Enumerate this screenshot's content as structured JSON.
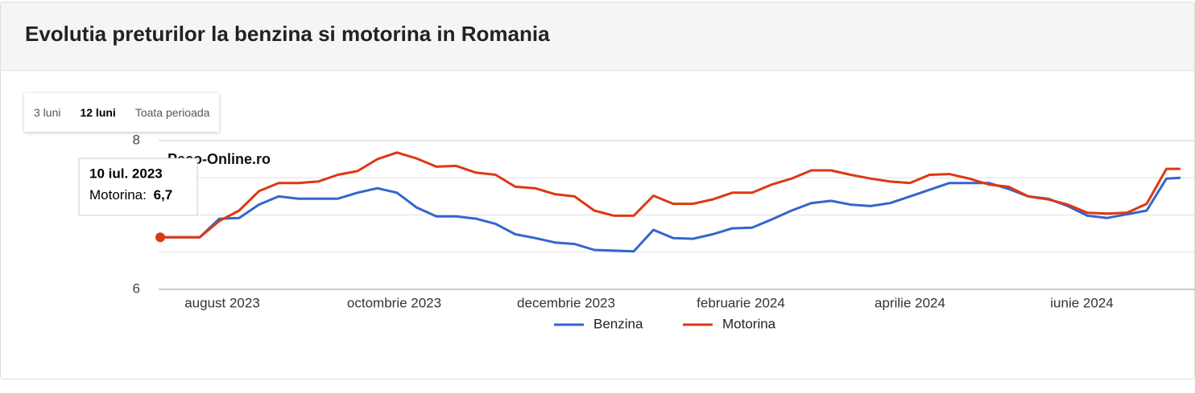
{
  "header": {
    "title": "Evolutia preturilor la benzina si motorina in Romania"
  },
  "range_buttons": [
    "3 luni",
    "12 luni",
    "Toata perioada"
  ],
  "active_range": 1,
  "chart_data": {
    "type": "line",
    "watermark": "Peco-Online.ro",
    "x": [
      "2023-07-10",
      "2023-07-17",
      "2023-07-24",
      "2023-07-31",
      "2023-08-07",
      "2023-08-14",
      "2023-08-21",
      "2023-08-28",
      "2023-09-04",
      "2023-09-11",
      "2023-09-18",
      "2023-09-25",
      "2023-10-02",
      "2023-10-09",
      "2023-10-16",
      "2023-10-23",
      "2023-10-30",
      "2023-11-06",
      "2023-11-13",
      "2023-11-20",
      "2023-11-27",
      "2023-12-04",
      "2023-12-11",
      "2023-12-18",
      "2023-12-25",
      "2024-01-01",
      "2024-01-08",
      "2024-01-15",
      "2024-01-22",
      "2024-01-29",
      "2024-02-05",
      "2024-02-12",
      "2024-02-19",
      "2024-02-26",
      "2024-03-04",
      "2024-03-11",
      "2024-03-18",
      "2024-03-25",
      "2024-04-01",
      "2024-04-08",
      "2024-04-15",
      "2024-04-22",
      "2024-04-29",
      "2024-05-06",
      "2024-05-13",
      "2024-05-20",
      "2024-05-27",
      "2024-06-03",
      "2024-06-10",
      "2024-06-17",
      "2024-06-24",
      "2024-07-01",
      "2024-07-06"
    ],
    "series": [
      {
        "name": "Benzina",
        "color": "#3366cc",
        "values": [
          6.7,
          6.7,
          6.7,
          6.95,
          6.96,
          7.14,
          7.25,
          7.22,
          7.22,
          7.22,
          7.3,
          7.36,
          7.3,
          7.1,
          6.98,
          6.98,
          6.95,
          6.88,
          6.74,
          6.69,
          6.63,
          6.61,
          6.53,
          6.52,
          6.51,
          6.8,
          6.69,
          6.68,
          6.74,
          6.82,
          6.83,
          6.94,
          7.06,
          7.16,
          7.19,
          7.14,
          7.12,
          7.16,
          7.25,
          7.34,
          7.43,
          7.43,
          7.43,
          7.35,
          7.25,
          7.22,
          7.12,
          6.99,
          6.96,
          7.01,
          7.06,
          7.49,
          7.5
        ]
      },
      {
        "name": "Motorina",
        "color": "#dc3912",
        "values": [
          6.7,
          6.7,
          6.7,
          6.92,
          7.06,
          7.32,
          7.43,
          7.43,
          7.45,
          7.54,
          7.59,
          7.75,
          7.84,
          7.76,
          7.65,
          7.66,
          7.57,
          7.54,
          7.38,
          7.36,
          7.28,
          7.25,
          7.06,
          6.99,
          6.99,
          7.26,
          7.15,
          7.15,
          7.21,
          7.3,
          7.3,
          7.41,
          7.49,
          7.6,
          7.6,
          7.54,
          7.49,
          7.45,
          7.43,
          7.54,
          7.55,
          7.49,
          7.41,
          7.38,
          7.25,
          7.21,
          7.14,
          7.03,
          7.02,
          7.03,
          7.15,
          7.62,
          7.62
        ]
      }
    ],
    "xlim": [
      "2023-07-10",
      "2024-07-06"
    ],
    "xticks": [
      {
        "value": "2023-08-01",
        "label": "august 2023"
      },
      {
        "value": "2023-10-01",
        "label": "octombrie 2023"
      },
      {
        "value": "2023-12-01",
        "label": "decembrie 2023"
      },
      {
        "value": "2024-02-01",
        "label": "februarie 2024"
      },
      {
        "value": "2024-04-01",
        "label": "aprilie 2024"
      },
      {
        "value": "2024-06-01",
        "label": "iunie 2024"
      }
    ],
    "ylim": [
      6,
      8
    ],
    "yticks": [
      6,
      8
    ],
    "minor_yticks": [
      6.5,
      7,
      7.5
    ],
    "grid": true,
    "legend": "bottom",
    "tooltip": {
      "date": "10 iul. 2023",
      "series_label": "Motorina: ",
      "value_label": "6,7",
      "series": 1,
      "index": 0
    }
  }
}
